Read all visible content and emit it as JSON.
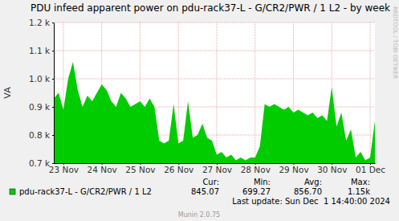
{
  "chart_data": {
    "type": "area",
    "title": "PDU infeed apparent power on pdu-rack37-L - G/CR2/PWR / 1 L2 - by week",
    "y_label": "VA",
    "categories": [
      null,
      null,
      "23 Nov",
      null,
      null,
      null,
      null,
      null,
      null,
      null,
      "24 Nov",
      null,
      null,
      null,
      null,
      null,
      null,
      null,
      "25 Nov",
      null,
      null,
      null,
      null,
      null,
      null,
      null,
      "26 Nov",
      null,
      null,
      null,
      null,
      null,
      null,
      null,
      "27 Nov",
      null,
      null,
      null,
      null,
      null,
      null,
      null,
      "28 Nov",
      null,
      null,
      null,
      null,
      null,
      null,
      null,
      "29 Nov",
      null,
      null,
      null,
      null,
      null,
      null,
      null,
      "30 Nov",
      null,
      null,
      null,
      null,
      null,
      null,
      null,
      "01 Dec",
      null
    ],
    "series": [
      {
        "name": "pdu-rack37-L - G/CR2/PWR / 1 L2",
        "color": "#00cc00",
        "values": [
          930,
          950,
          890,
          1000,
          1060,
          960,
          900,
          940,
          920,
          950,
          980,
          960,
          920,
          900,
          950,
          930,
          900,
          910,
          920,
          900,
          930,
          900,
          780,
          770,
          780,
          910,
          770,
          780,
          920,
          790,
          800,
          840,
          790,
          780,
          730,
          740,
          720,
          730,
          710,
          720,
          710,
          720,
          720,
          760,
          910,
          900,
          910,
          900,
          890,
          900,
          880,
          890,
          880,
          870,
          880,
          860,
          870,
          850,
          970,
          830,
          880,
          780,
          820,
          720,
          740,
          710,
          720,
          850
        ]
      }
    ],
    "ylim": [
      700,
      1200
    ],
    "yticks": [
      {
        "value": 700,
        "label": "0.7 k"
      },
      {
        "value": 800,
        "label": "0.8 k"
      },
      {
        "value": 900,
        "label": "0.9 k"
      },
      {
        "value": 1000,
        "label": "1.0 k"
      },
      {
        "value": 1100,
        "label": "1.1 k"
      },
      {
        "value": 1200,
        "label": "1.2 k"
      }
    ],
    "grid": true,
    "stats": {
      "labels": [
        "Cur:",
        "Min:",
        "Avg:",
        "Max:"
      ],
      "values": [
        845.07,
        699.27,
        856.7,
        1150
      ],
      "value_labels": [
        "845.07",
        "699.27",
        "856.70",
        "1.15k"
      ]
    },
    "last_update": "Last update: Sun Dec  1 14:40:00 2024",
    "footer": "Munin 2.0.75",
    "watermark": "RRDTOOL / TOBI OETIKER"
  }
}
